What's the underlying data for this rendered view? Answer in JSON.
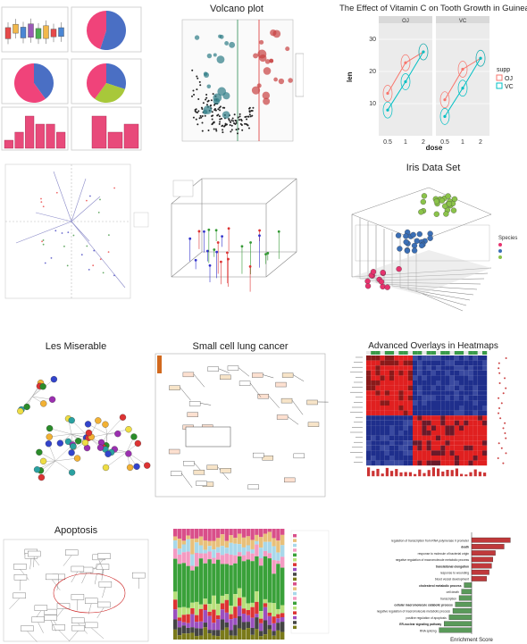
{
  "tiles": {
    "volcano": {
      "title": "Volcano plot"
    },
    "tooth": {
      "title": "The Effect of Vitamin C on Tooth Growth in Guinea Pigs",
      "xlabel": "dose",
      "ylabel": "len",
      "panels": [
        "OJ",
        "VC"
      ],
      "xticks": [
        "0.5",
        "1",
        "2"
      ],
      "yticks": [
        "10",
        "20",
        "30"
      ],
      "legend_title": "supp",
      "legend": [
        "OJ",
        "VC"
      ]
    },
    "iris": {
      "title": "Iris Data Set",
      "legend_title": "Species"
    },
    "lesmis": {
      "title": "Les Miserable"
    },
    "sclc": {
      "title": "Small cell lung cancer"
    },
    "heatmap": {
      "title": "Advanced Overlays in Heatmaps"
    },
    "apoptosis": {
      "title": "Apoptosis"
    },
    "enrich": {
      "xlabel": "Enrichment Score",
      "terms": [
        "regulation of transcription from RNA polymerase II promoter",
        "death",
        "response to molecule of bacterial origin",
        "negative regulation of macromolecule metabolic process",
        "translational elongation",
        "response to wounding",
        "blood vessel development",
        "cholesterol metabolic process",
        "cell death",
        "transcription",
        "cellular macromolecule catabolic process",
        "negative regulation of macromolecule metabolic process",
        "positive regulation of apoptosis",
        "ER-nuclear signaling pathway",
        "RNA splicing"
      ]
    }
  },
  "colors": {
    "oj": "#f8766d",
    "vc": "#00bfc4",
    "pink": "#e84a7a",
    "pie_blue": "#4a6fc4",
    "pie_pink": "#f0437a",
    "pie_green": "#a8c83a",
    "volcano_red": "#c84040",
    "volcano_teal": "#2e7c86",
    "iris_green": "#8bc34a",
    "iris_blue": "#3b6fb6",
    "iris_pink": "#e6336e",
    "heat_red": "#e02020",
    "heat_blue": "#1f2f8c",
    "bar_red": "#c0393b",
    "bar_green": "#5a9a5a"
  },
  "chart_data": [
    {
      "type": "bar",
      "panel": "tooth-growth",
      "title": "The Effect of Vitamin C on Tooth Growth in Guinea Pigs",
      "xlabel": "dose",
      "ylabel": "len",
      "categories": [
        "0.5",
        "1",
        "2"
      ],
      "series": [
        {
          "name": "OJ",
          "values": [
            13.2,
            22.7,
            26.1
          ]
        },
        {
          "name": "VC",
          "values": [
            8.0,
            16.8,
            26.1
          ]
        }
      ],
      "ylim": [
        0,
        35
      ]
    },
    {
      "type": "bar",
      "panel": "enrichment",
      "xlabel": "Enrichment Score",
      "categories": [
        "regulation of transcription from RNA polymerase II promoter",
        "death",
        "response to molecule of bacterial origin",
        "negative regulation of macromolecule metabolic process",
        "translational elongation",
        "response to wounding",
        "blood vessel development",
        "cholesterol metabolic process",
        "cell death",
        "transcription",
        "cellular macromolecule catabolic process",
        "negative regulation of macromolecule metabolic process",
        "positive regulation of apoptosis",
        "ER-nuclear signaling pathway",
        "RNA splicing"
      ],
      "values": [
        3.1,
        2.6,
        1.9,
        1.7,
        1.6,
        1.4,
        1.2,
        -0.6,
        -0.8,
        -1.0,
        -1.3,
        -1.5,
        -1.8,
        -2.2,
        -2.6
      ]
    },
    {
      "type": "bar",
      "panel": "small-histogram-left",
      "values": [
        1,
        2,
        4,
        3,
        3,
        2
      ]
    },
    {
      "type": "bar",
      "panel": "small-histogram-right",
      "values": [
        0,
        4,
        2,
        3
      ]
    }
  ]
}
